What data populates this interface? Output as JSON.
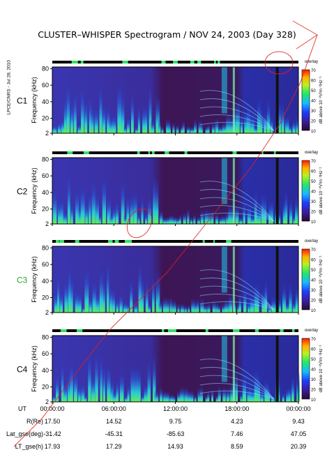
{
  "title": "CLUSTER–WHISPER Spectrogram / NOV 24, 2003 (Day 328)",
  "credit": "LPCE/CNRS - Jul 28, 2010",
  "chart_data": {
    "type": "heatmap",
    "ylabel": "Frequency (kHz)",
    "y_ticks": [
      "2",
      "20",
      "40",
      "60",
      "80"
    ],
    "ylim": [
      2,
      82
    ],
    "x_ticks": [
      "00:00:00",
      "06:00:00",
      "12:00:00",
      "18:00:00",
      "00:00:00"
    ],
    "colorbar": {
      "label": "dB above 10⁻⁸V²m⁻²Hz⁻¹",
      "ticks": [
        "10",
        "20",
        "30",
        "40",
        "50",
        "60",
        "70"
      ],
      "mode_label": "overlay"
    },
    "panels": [
      {
        "name": "C1",
        "color": "#000000"
      },
      {
        "name": "C2",
        "color": "#000000"
      },
      {
        "name": "C3",
        "color": "#2aa52a"
      },
      {
        "name": "C4",
        "color": "#000000"
      }
    ],
    "ephemeris": {
      "ut_label": "UT",
      "rows": [
        {
          "label": "R(Re)",
          "values": [
            "17.50",
            "14.52",
            "9.75",
            "4.23",
            "9.43"
          ]
        },
        {
          "label": "Lat_gse(deg)",
          "values": [
            "-31.42",
            "-45.31",
            "-85.63",
            "7.46",
            "47.05"
          ]
        },
        {
          "label": "LT_gse(h)",
          "values": [
            "17.93",
            "17.29",
            "14.93",
            "8.59",
            "20.39"
          ]
        }
      ]
    }
  }
}
